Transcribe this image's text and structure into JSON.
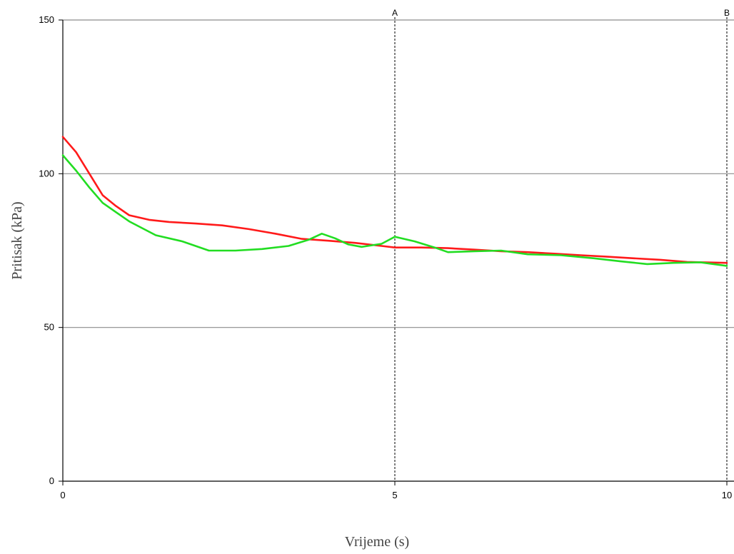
{
  "chart_data": {
    "type": "line",
    "xlabel": "Vrijeme (s)",
    "ylabel": "Pritisak (kPa)",
    "xlim": [
      0,
      10
    ],
    "ylim": [
      0,
      150
    ],
    "x_ticks": [
      0,
      5,
      10
    ],
    "y_ticks": [
      0,
      50,
      100,
      150
    ],
    "grid": "horizontal",
    "markers": [
      {
        "label": "A",
        "x": 5
      },
      {
        "label": "B",
        "x": 10
      }
    ],
    "series": [
      {
        "color": "#ff1a1a",
        "points": [
          [
            0,
            112
          ],
          [
            0.2,
            107
          ],
          [
            0.4,
            100
          ],
          [
            0.6,
            93
          ],
          [
            0.8,
            89.5
          ],
          [
            1.0,
            86.5
          ],
          [
            1.3,
            85
          ],
          [
            1.6,
            84.3
          ],
          [
            2.0,
            83.8
          ],
          [
            2.4,
            83.2
          ],
          [
            2.8,
            82
          ],
          [
            3.2,
            80.5
          ],
          [
            3.6,
            78.8
          ],
          [
            4.0,
            78.2
          ],
          [
            4.4,
            77.5
          ],
          [
            4.8,
            76.5
          ],
          [
            5.0,
            76
          ],
          [
            5.4,
            76
          ],
          [
            5.8,
            75.8
          ],
          [
            6.2,
            75.3
          ],
          [
            6.6,
            74.8
          ],
          [
            7.0,
            74.5
          ],
          [
            7.4,
            74
          ],
          [
            7.8,
            73.5
          ],
          [
            8.2,
            73
          ],
          [
            8.6,
            72.5
          ],
          [
            9.0,
            72
          ],
          [
            9.4,
            71.3
          ],
          [
            10.0,
            71
          ]
        ]
      },
      {
        "color": "#22dd22",
        "points": [
          [
            0,
            106
          ],
          [
            0.2,
            101
          ],
          [
            0.4,
            95.5
          ],
          [
            0.6,
            90.5
          ],
          [
            0.8,
            87.5
          ],
          [
            1.0,
            84.5
          ],
          [
            1.4,
            80
          ],
          [
            1.8,
            78
          ],
          [
            2.2,
            75
          ],
          [
            2.6,
            75
          ],
          [
            3.0,
            75.5
          ],
          [
            3.4,
            76.5
          ],
          [
            3.7,
            78.5
          ],
          [
            3.9,
            80.5
          ],
          [
            4.1,
            79
          ],
          [
            4.3,
            77
          ],
          [
            4.5,
            76.2
          ],
          [
            4.8,
            77.2
          ],
          [
            5.0,
            79.5
          ],
          [
            5.3,
            78
          ],
          [
            5.6,
            76
          ],
          [
            5.8,
            74.5
          ],
          [
            6.2,
            74.8
          ],
          [
            6.6,
            75
          ],
          [
            7.0,
            73.8
          ],
          [
            7.5,
            73.5
          ],
          [
            8.0,
            72.5
          ],
          [
            8.4,
            71.5
          ],
          [
            8.8,
            70.6
          ],
          [
            9.2,
            71
          ],
          [
            9.6,
            71.2
          ],
          [
            10.0,
            70
          ]
        ]
      }
    ]
  }
}
